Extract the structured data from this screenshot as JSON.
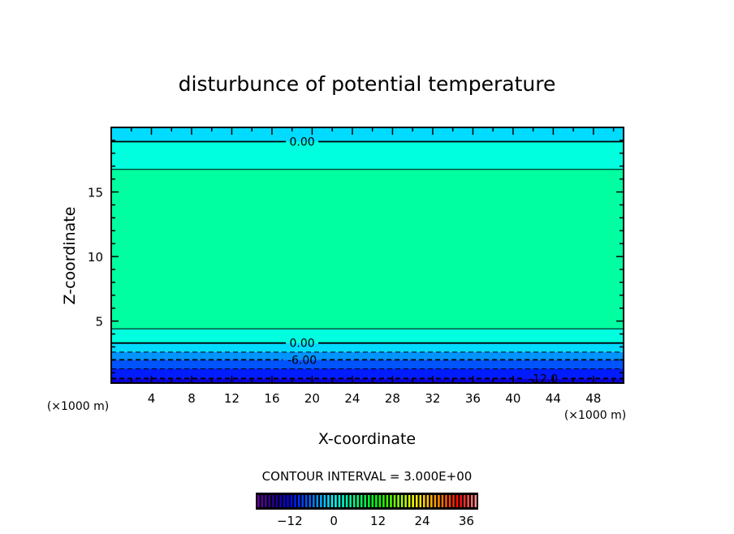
{
  "chart_data": {
    "type": "contour",
    "title": "disturbunce of potential temperature",
    "xlabel": "X-coordinate",
    "ylabel": "Z-coordinate",
    "x_unit_label": "(×1000 m)",
    "y_unit_label": "(×1000 m)",
    "xlim": [
      0,
      51
    ],
    "ylim": [
      0.2,
      20
    ],
    "x_ticks": [
      4,
      8,
      12,
      16,
      20,
      24,
      28,
      32,
      36,
      40,
      44,
      48
    ],
    "y_ticks": [
      5,
      10,
      15
    ],
    "contour_interval_label": "CONTOUR INTERVAL = 3.000E+00",
    "contours": [
      {
        "level": 0,
        "z": 18.9,
        "label": "0.00",
        "label_x": 19
      },
      {
        "level": 3,
        "z": 16.75,
        "label": "",
        "label_x": null
      },
      {
        "level": 3,
        "z": 4.4,
        "label": "",
        "label_x": null
      },
      {
        "level": 0,
        "z": 3.3,
        "label": "0.00",
        "label_x": 19
      },
      {
        "level": -3,
        "z": 2.6,
        "label": "",
        "label_x": null
      },
      {
        "level": -6,
        "z": 2.0,
        "label": "-6.00",
        "label_x": 19
      },
      {
        "level": -9,
        "z": 1.3,
        "label": "",
        "label_x": null
      },
      {
        "level": -12,
        "z": 0.55,
        "label": "-12.0",
        "label_x": 43
      }
    ],
    "fill_bands": [
      {
        "z_from": 18.9,
        "z_to": 20,
        "value": -1.5
      },
      {
        "z_from": 16.75,
        "z_to": 18.9,
        "value": 1.5
      },
      {
        "z_from": 4.4,
        "z_to": 16.75,
        "value": 4.5
      },
      {
        "z_from": 3.3,
        "z_to": 4.4,
        "value": 1.5
      },
      {
        "z_from": 2.6,
        "z_to": 3.3,
        "value": -1.5
      },
      {
        "z_from": 2.0,
        "z_to": 2.6,
        "value": -4.5
      },
      {
        "z_from": 1.3,
        "z_to": 2.0,
        "value": -7.5
      },
      {
        "z_from": 0.55,
        "z_to": 1.3,
        "value": -10.5
      },
      {
        "z_from": 0.2,
        "z_to": 0.55,
        "value": -13.5
      }
    ],
    "colorbar": {
      "range": [
        -21,
        39
      ],
      "ticks": [
        -12,
        0,
        12,
        24,
        36
      ],
      "tick_labels": [
        "-12",
        "0",
        "12",
        "24",
        "36"
      ],
      "colormap_stops": [
        {
          "v": -21,
          "c": "#7000a0"
        },
        {
          "v": -16,
          "c": "#200090"
        },
        {
          "v": -12,
          "c": "#0000ff"
        },
        {
          "v": -6,
          "c": "#0070ff"
        },
        {
          "v": 0,
          "c": "#00ffff"
        },
        {
          "v": 6,
          "c": "#00ff80"
        },
        {
          "v": 12,
          "c": "#00ff00"
        },
        {
          "v": 22,
          "c": "#ffff00"
        },
        {
          "v": 29,
          "c": "#ff8000"
        },
        {
          "v": 34,
          "c": "#ff0000"
        },
        {
          "v": 39,
          "c": "#ff9a9a"
        }
      ]
    },
    "grid": false
  }
}
